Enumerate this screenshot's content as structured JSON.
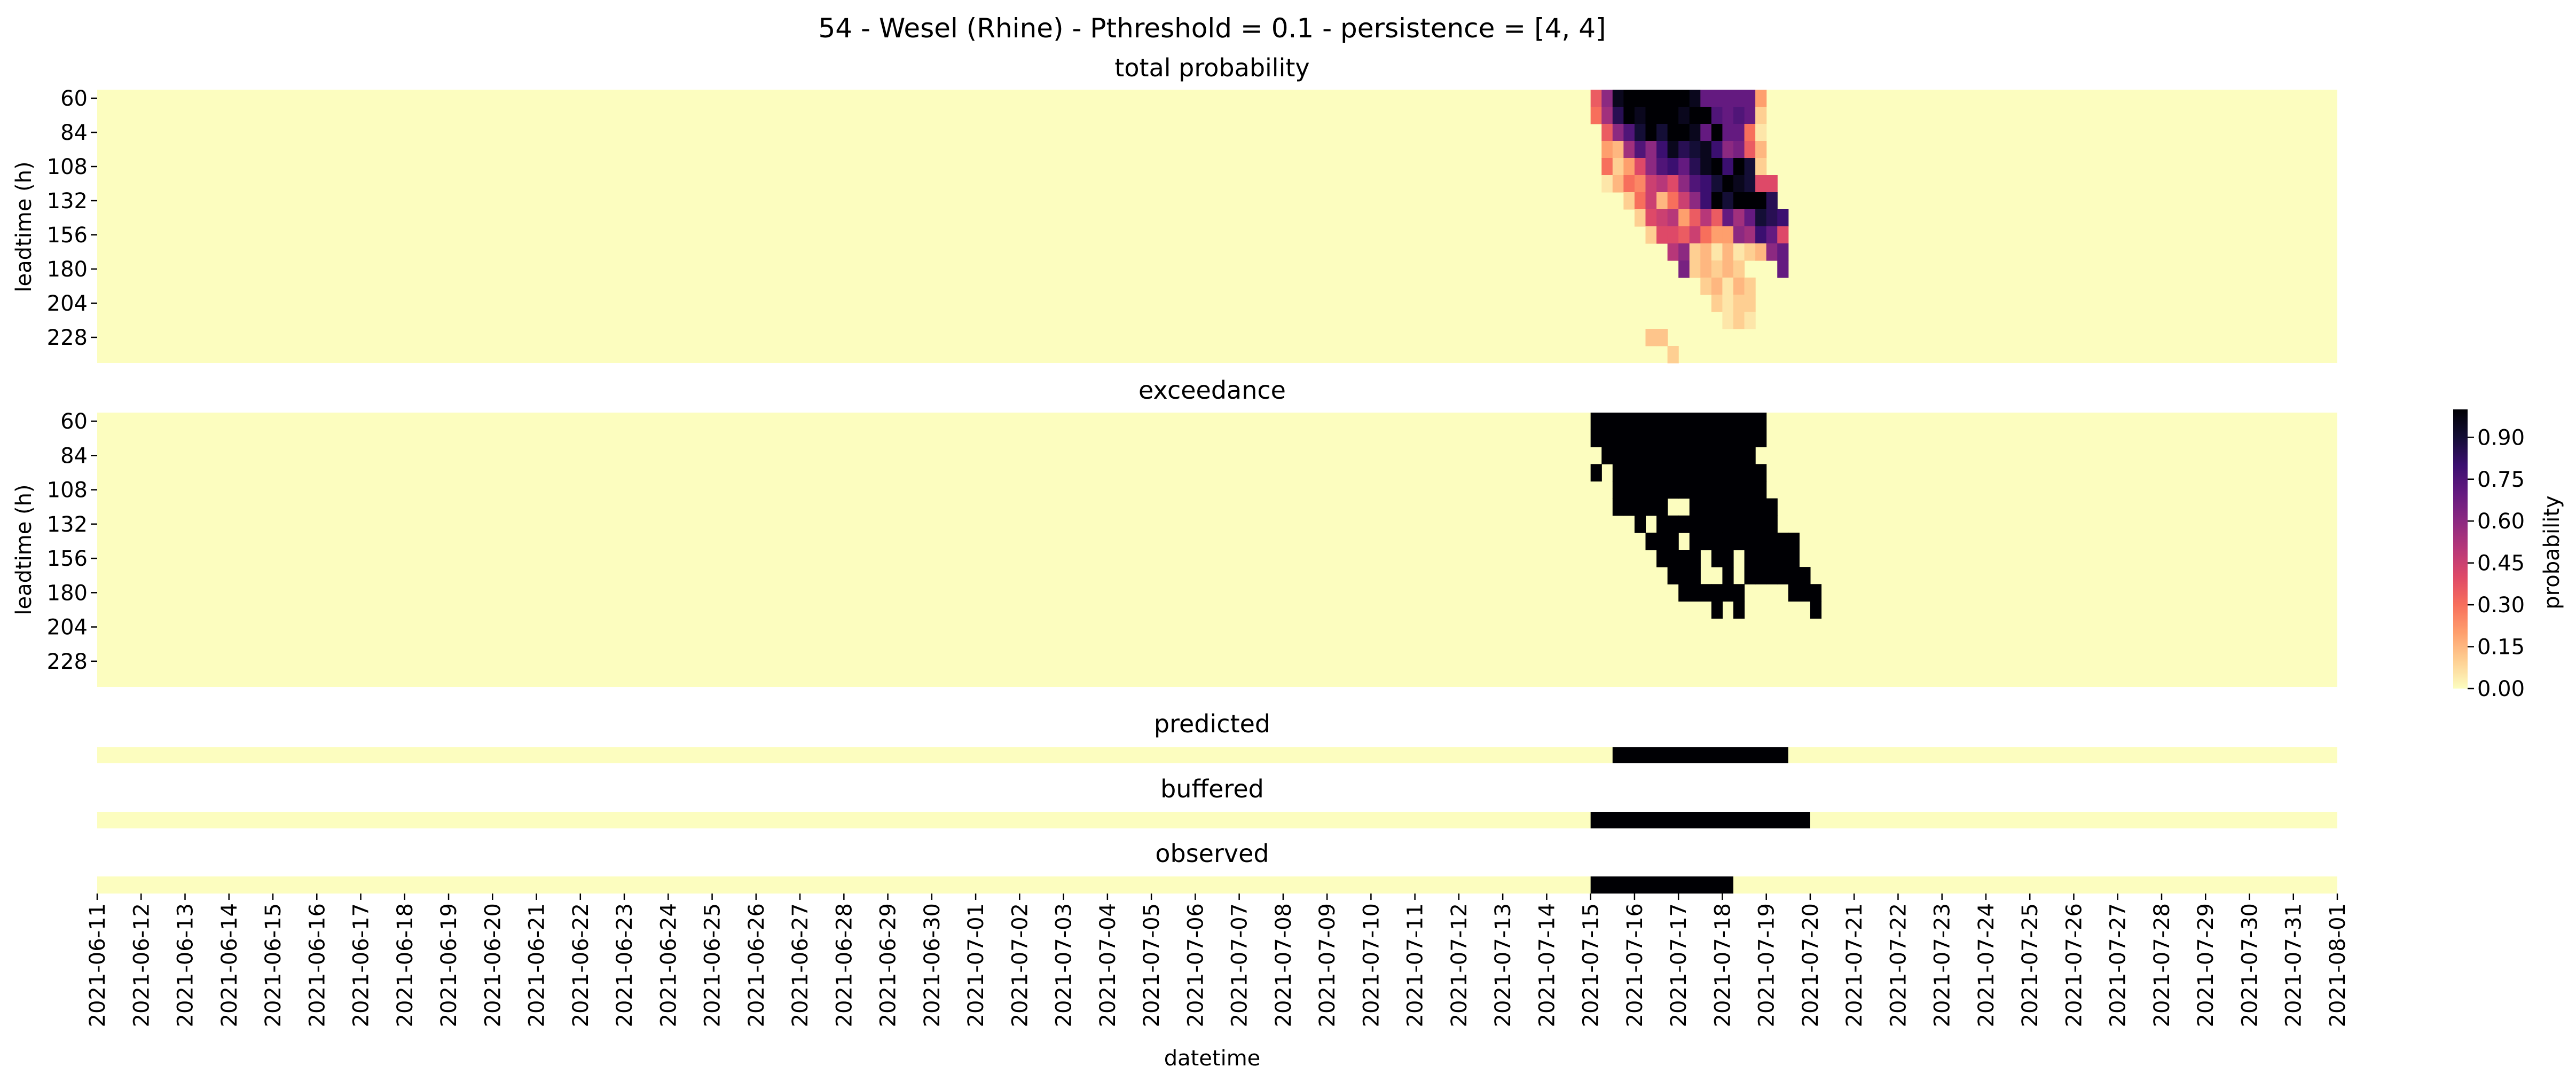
{
  "title": "54 - Wesel (Rhine) - Pthreshold = 0.1 - persistence = [4, 4]",
  "xlabel": "datetime",
  "colorbar": {
    "label": "probability",
    "ticks": [
      "0.00",
      "0.15",
      "0.30",
      "0.45",
      "0.60",
      "0.75",
      "0.90"
    ],
    "colormap": "magma_r",
    "vmin": 0,
    "vmax": 1
  },
  "chart_data": [
    {
      "type": "heatmap",
      "name": "total-probability",
      "title": "total probability",
      "ylabel": "leadtime (h)",
      "y_ticks": [
        "60",
        "84",
        "108",
        "132",
        "156",
        "180",
        "204",
        "228"
      ],
      "leadtime_step_h": 12,
      "leadtime_range": [
        60,
        240
      ],
      "color_range": [
        0,
        1
      ],
      "note_values": "matrix rows = leadtime 60..240 h every 12 h; columns = forecast dates 2021-07-15 .. 2021-07-21 in 6-hourly steps (25 columns); all other dates are 0",
      "x_start": "2021-07-15",
      "x_step_hours": 6,
      "values": [
        [
          0.35,
          0.6,
          0.95,
          1.0,
          1.0,
          1.0,
          1.0,
          1.0,
          1.0,
          0.95,
          0.7,
          0.7,
          0.7,
          0.7,
          0.7,
          0.2,
          0,
          0,
          0,
          0,
          0,
          0,
          0,
          0,
          0
        ],
        [
          0.3,
          0.55,
          0.85,
          1.0,
          0.95,
          1.0,
          1.0,
          1.0,
          0.95,
          1.0,
          1.0,
          0.75,
          0.7,
          0.75,
          0.7,
          0.1,
          0,
          0,
          0,
          0,
          0,
          0,
          0,
          0,
          0
        ],
        [
          0,
          0.35,
          0.6,
          0.75,
          0.9,
          1.0,
          0.9,
          1.0,
          1.0,
          0.95,
          0.7,
          1.0,
          0.7,
          0.7,
          0.3,
          0.05,
          0,
          0,
          0,
          0,
          0,
          0,
          0,
          0,
          0
        ],
        [
          0,
          0.2,
          0.15,
          0.55,
          0.75,
          0.6,
          0.8,
          0.95,
          0.85,
          0.9,
          0.95,
          0.8,
          0.6,
          0.65,
          0.35,
          0.15,
          0,
          0,
          0,
          0,
          0,
          0,
          0,
          0,
          0
        ],
        [
          0,
          0.3,
          0.1,
          0.2,
          0.4,
          0.6,
          0.75,
          0.8,
          0.7,
          0.85,
          0.95,
          1.0,
          0.8,
          1.0,
          0.9,
          0.1,
          0,
          0,
          0,
          0,
          0,
          0,
          0,
          0,
          0
        ],
        [
          0,
          0.05,
          0.15,
          0.3,
          0.25,
          0.45,
          0.5,
          0.4,
          0.6,
          0.75,
          0.8,
          0.9,
          1.0,
          0.95,
          0.9,
          0.4,
          0.4,
          0,
          0,
          0,
          0,
          0,
          0,
          0,
          0
        ],
        [
          0,
          0,
          0,
          0.1,
          0.3,
          0.45,
          0.15,
          0.3,
          0.45,
          0.6,
          0.8,
          1.0,
          0.9,
          1.0,
          1.0,
          1.0,
          0.85,
          0,
          0,
          0,
          0,
          0,
          0,
          0,
          0
        ],
        [
          0,
          0,
          0,
          0,
          0.1,
          0.4,
          0.45,
          0.5,
          0.2,
          0.35,
          0.5,
          0.35,
          0.7,
          0.55,
          0.7,
          0.9,
          0.85,
          0.8,
          0,
          0,
          0,
          0,
          0,
          0,
          0
        ],
        [
          0,
          0,
          0,
          0,
          0,
          0.1,
          0.4,
          0.4,
          0.35,
          0.45,
          0.3,
          0.2,
          0.2,
          0.6,
          0.55,
          0.8,
          0.7,
          0.4,
          0,
          0,
          0,
          0,
          0,
          0,
          0
        ],
        [
          0,
          0,
          0,
          0,
          0,
          0,
          0,
          0.5,
          0.6,
          0.1,
          0.15,
          0.05,
          0.15,
          0.05,
          0.1,
          0.15,
          0.6,
          0.7,
          0,
          0,
          0,
          0,
          0,
          0,
          0
        ],
        [
          0,
          0,
          0,
          0,
          0,
          0,
          0,
          0,
          0.65,
          0.1,
          0.15,
          0.1,
          0.15,
          0.1,
          0,
          0,
          0,
          0.7,
          0,
          0,
          0,
          0,
          0,
          0,
          0
        ],
        [
          0,
          0,
          0,
          0,
          0,
          0,
          0,
          0,
          0,
          0,
          0.1,
          0.15,
          0.05,
          0.15,
          0.1,
          0,
          0,
          0,
          0,
          0,
          0,
          0,
          0,
          0,
          0
        ],
        [
          0,
          0,
          0,
          0,
          0,
          0,
          0,
          0,
          0,
          0,
          0,
          0.1,
          0.05,
          0.1,
          0.1,
          0,
          0,
          0,
          0,
          0,
          0,
          0,
          0,
          0,
          0
        ],
        [
          0,
          0,
          0,
          0,
          0,
          0,
          0,
          0,
          0,
          0,
          0,
          0,
          0.05,
          0.1,
          0.05,
          0,
          0,
          0,
          0,
          0,
          0,
          0,
          0,
          0,
          0
        ],
        [
          0,
          0,
          0,
          0,
          0,
          0.12,
          0.12,
          0,
          0,
          0,
          0,
          0,
          0,
          0,
          0,
          0,
          0,
          0,
          0,
          0,
          0,
          0,
          0,
          0,
          0
        ],
        [
          0,
          0,
          0,
          0,
          0,
          0,
          0,
          0.1,
          0,
          0,
          0,
          0,
          0,
          0,
          0,
          0,
          0,
          0,
          0,
          0,
          0,
          0,
          0,
          0,
          0
        ]
      ]
    },
    {
      "type": "heatmap",
      "name": "exceedance",
      "title": "exceedance",
      "ylabel": "leadtime (h)",
      "y_ticks": [
        "60",
        "84",
        "108",
        "132",
        "156",
        "180",
        "204",
        "228"
      ],
      "leadtime_step_h": 12,
      "leadtime_range": [
        60,
        240
      ],
      "color_range": [
        0,
        1
      ],
      "x_start": "2021-07-15",
      "x_step_hours": 6,
      "values": [
        [
          1,
          1,
          1,
          1,
          1,
          1,
          1,
          1,
          1,
          1,
          1,
          1,
          1,
          1,
          1,
          1,
          0,
          0,
          0,
          0,
          0,
          0,
          0,
          0,
          0
        ],
        [
          1,
          1,
          1,
          1,
          1,
          1,
          1,
          1,
          1,
          1,
          1,
          1,
          1,
          1,
          1,
          1,
          0,
          0,
          0,
          0,
          0,
          0,
          0,
          0,
          0
        ],
        [
          0,
          1,
          1,
          1,
          1,
          1,
          1,
          1,
          1,
          1,
          1,
          1,
          1,
          1,
          1,
          0,
          0,
          0,
          0,
          0,
          0,
          0,
          0,
          0,
          0
        ],
        [
          1,
          0,
          1,
          1,
          1,
          1,
          1,
          1,
          1,
          1,
          1,
          1,
          1,
          1,
          1,
          1,
          0,
          0,
          0,
          0,
          0,
          0,
          0,
          0,
          0
        ],
        [
          0,
          0,
          1,
          1,
          1,
          1,
          1,
          1,
          1,
          1,
          1,
          1,
          1,
          1,
          1,
          1,
          0,
          0,
          0,
          0,
          0,
          0,
          0,
          0,
          0
        ],
        [
          0,
          0,
          1,
          1,
          1,
          1,
          1,
          0,
          0,
          1,
          1,
          1,
          1,
          1,
          1,
          1,
          1,
          0,
          0,
          0,
          0,
          0,
          0,
          0,
          0
        ],
        [
          0,
          0,
          0,
          0,
          1,
          0,
          1,
          1,
          1,
          1,
          1,
          1,
          1,
          1,
          1,
          1,
          1,
          0,
          0,
          0,
          0,
          0,
          0,
          0,
          0
        ],
        [
          0,
          0,
          0,
          0,
          0,
          1,
          1,
          1,
          0,
          1,
          1,
          1,
          1,
          1,
          1,
          1,
          1,
          1,
          1,
          0,
          0,
          0,
          0,
          0,
          0
        ],
        [
          0,
          0,
          0,
          0,
          0,
          0,
          1,
          1,
          1,
          1,
          0,
          1,
          1,
          0,
          1,
          1,
          1,
          1,
          1,
          0,
          0,
          0,
          0,
          0,
          0
        ],
        [
          0,
          0,
          0,
          0,
          0,
          0,
          0,
          1,
          1,
          1,
          0,
          0,
          1,
          0,
          1,
          1,
          1,
          1,
          1,
          1,
          0,
          0,
          0,
          0,
          0
        ],
        [
          0,
          0,
          0,
          0,
          0,
          0,
          0,
          0,
          1,
          1,
          1,
          1,
          1,
          1,
          0,
          0,
          0,
          0,
          1,
          1,
          1,
          0,
          0,
          0,
          0
        ],
        [
          0,
          0,
          0,
          0,
          0,
          0,
          0,
          0,
          0,
          0,
          0,
          1,
          0,
          1,
          0,
          0,
          0,
          0,
          0,
          0,
          1,
          0,
          0,
          0,
          0
        ],
        [
          0,
          0,
          0,
          0,
          0,
          0,
          0,
          0,
          0,
          0,
          0,
          0,
          0,
          0,
          0,
          0,
          0,
          0,
          0,
          0,
          0,
          0,
          0,
          0,
          0
        ],
        [
          0,
          0,
          0,
          0,
          0,
          0,
          0,
          0,
          0,
          0,
          0,
          0,
          0,
          0,
          0,
          0,
          0,
          0,
          0,
          0,
          0,
          0,
          0,
          0,
          0
        ],
        [
          0,
          0,
          0,
          0,
          0,
          0,
          0,
          0,
          0,
          0,
          0,
          0,
          0,
          0,
          0,
          0,
          0,
          0,
          0,
          0,
          0,
          0,
          0,
          0,
          0
        ],
        [
          0,
          0,
          0,
          0,
          0,
          0,
          0,
          0,
          0,
          0,
          0,
          0,
          0,
          0,
          0,
          0,
          0,
          0,
          0,
          0,
          0,
          0,
          0,
          0,
          0
        ]
      ]
    },
    {
      "type": "heatmap",
      "name": "predicted",
      "title": "predicted",
      "events": [
        {
          "start": "2021-07-15T12:00",
          "end": "2021-07-19T12:00",
          "value": 1
        }
      ]
    },
    {
      "type": "heatmap",
      "name": "buffered",
      "title": "buffered",
      "events": [
        {
          "start": "2021-07-15T00:00",
          "end": "2021-07-20T00:00",
          "value": 1
        }
      ]
    },
    {
      "type": "heatmap",
      "name": "observed",
      "title": "observed",
      "events": [
        {
          "start": "2021-07-15T00:00",
          "end": "2021-07-18T06:00",
          "value": 1
        }
      ]
    }
  ],
  "x_ticks": [
    "2021-06-11",
    "2021-06-12",
    "2021-06-13",
    "2021-06-14",
    "2021-06-15",
    "2021-06-16",
    "2021-06-17",
    "2021-06-18",
    "2021-06-19",
    "2021-06-20",
    "2021-06-21",
    "2021-06-22",
    "2021-06-23",
    "2021-06-24",
    "2021-06-25",
    "2021-06-26",
    "2021-06-27",
    "2021-06-28",
    "2021-06-29",
    "2021-06-30",
    "2021-07-01",
    "2021-07-02",
    "2021-07-03",
    "2021-07-04",
    "2021-07-05",
    "2021-07-06",
    "2021-07-07",
    "2021-07-08",
    "2021-07-09",
    "2021-07-10",
    "2021-07-11",
    "2021-07-12",
    "2021-07-13",
    "2021-07-14",
    "2021-07-15",
    "2021-07-16",
    "2021-07-17",
    "2021-07-18",
    "2021-07-19",
    "2021-07-20",
    "2021-07-21",
    "2021-07-22",
    "2021-07-23",
    "2021-07-24",
    "2021-07-25",
    "2021-07-26",
    "2021-07-27",
    "2021-07-28",
    "2021-07-29",
    "2021-07-30",
    "2021-07-31",
    "2021-08-01"
  ]
}
